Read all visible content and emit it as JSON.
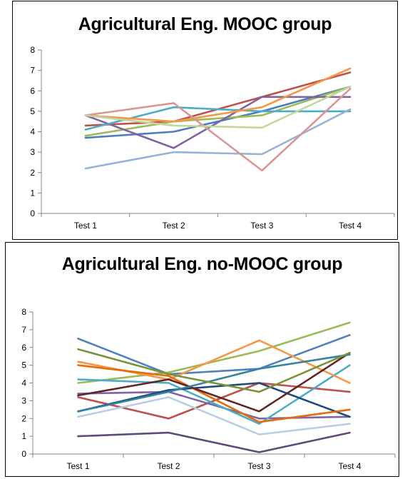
{
  "chart_data": [
    {
      "type": "line",
      "title": "Agricultural Eng. MOOC group",
      "categories": [
        "Test 1",
        "Test 2",
        "Test 3",
        "Test 4"
      ],
      "ylim": [
        0,
        8
      ],
      "yticks": [
        "0",
        "1",
        "2",
        "3",
        "4",
        "5",
        "6",
        "7",
        "8"
      ],
      "grid": false,
      "legend": "none",
      "series": [
        {
          "color": "#4E7DBA",
          "values": [
            3.7,
            4.0,
            5.0,
            6.2
          ]
        },
        {
          "color": "#C0504D",
          "values": [
            4.3,
            4.5,
            5.7,
            6.9
          ]
        },
        {
          "color": "#9BBB59",
          "values": [
            3.8,
            4.5,
            4.8,
            6.2
          ]
        },
        {
          "color": "#8064A2",
          "values": [
            4.8,
            3.2,
            5.7,
            5.7
          ]
        },
        {
          "color": "#4BACC6",
          "values": [
            4.1,
            5.2,
            5.0,
            5.0
          ]
        },
        {
          "color": "#F79646",
          "values": [
            4.8,
            4.5,
            5.2,
            7.1
          ]
        },
        {
          "color": "#95B3D7",
          "values": [
            2.2,
            3.0,
            2.9,
            5.1
          ]
        },
        {
          "color": "#D99694",
          "values": [
            4.8,
            5.4,
            2.1,
            6.1
          ]
        },
        {
          "color": "#C3D69B",
          "values": [
            4.8,
            4.3,
            4.2,
            6.2
          ]
        }
      ]
    },
    {
      "type": "line",
      "title": "Agricultural Eng. no-MOOC group",
      "categories": [
        "Test 1",
        "Test 2",
        "Test 3",
        "Test 4"
      ],
      "ylim": [
        0,
        8
      ],
      "yticks": [
        "0",
        "1",
        "2",
        "3",
        "4",
        "5",
        "6",
        "7",
        "8"
      ],
      "grid": false,
      "legend": "none",
      "series": [
        {
          "color": "#4F81BD",
          "values": [
            6.5,
            4.5,
            4.8,
            6.7
          ]
        },
        {
          "color": "#C0504D",
          "values": [
            3.2,
            2.0,
            4.0,
            3.5
          ]
        },
        {
          "color": "#9BBB59",
          "values": [
            4.0,
            4.6,
            5.8,
            7.4
          ]
        },
        {
          "color": "#8064A2",
          "values": [
            3.4,
            3.5,
            2.0,
            2.1
          ]
        },
        {
          "color": "#4BACC6",
          "values": [
            4.2,
            4.0,
            1.7,
            5.0
          ]
        },
        {
          "color": "#F79646",
          "values": [
            5.2,
            4.2,
            6.4,
            4.0
          ]
        },
        {
          "color": "#1F497D",
          "values": [
            2.4,
            3.6,
            4.0,
            2.1
          ]
        },
        {
          "color": "#E46C0A",
          "values": [
            5.0,
            4.4,
            1.8,
            2.5
          ]
        },
        {
          "color": "#B9CDE5",
          "values": [
            2.1,
            3.2,
            1.1,
            1.7
          ]
        },
        {
          "color": "#632523",
          "values": [
            3.3,
            4.2,
            2.4,
            5.7
          ]
        },
        {
          "color": "#31859C",
          "values": [
            2.4,
            3.5,
            4.8,
            5.6
          ]
        },
        {
          "color": "#77933C",
          "values": [
            5.9,
            4.5,
            3.5,
            5.7
          ]
        },
        {
          "color": "#604A7B",
          "values": [
            1.0,
            1.2,
            0.1,
            1.2
          ]
        }
      ]
    }
  ]
}
